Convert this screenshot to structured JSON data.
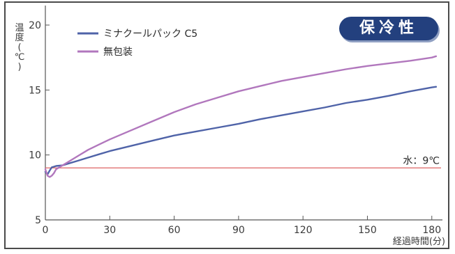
{
  "badge": {
    "label": "保冷性"
  },
  "chart_data": {
    "type": "line",
    "title": "",
    "ylabel": "温度(℃)",
    "xlabel": "経過時間(分)",
    "xlim": [
      0,
      183
    ],
    "ylim": [
      5,
      21.5
    ],
    "xticks": [
      0,
      30,
      60,
      90,
      120,
      150,
      180
    ],
    "yticks": [
      5,
      10,
      15,
      20
    ],
    "grid": false,
    "legend": "top-left",
    "series": [
      {
        "name": "ミナクールパック C5",
        "color": "#4f63a8",
        "x": [
          0,
          1,
          2,
          3,
          4,
          5,
          8,
          10,
          15,
          20,
          25,
          30,
          40,
          50,
          60,
          70,
          80,
          90,
          100,
          110,
          120,
          130,
          140,
          150,
          160,
          170,
          180,
          182
        ],
        "values": [
          8.7,
          8.5,
          8.8,
          9.05,
          9.1,
          9.15,
          9.2,
          9.3,
          9.55,
          9.8,
          10.05,
          10.3,
          10.7,
          11.1,
          11.5,
          11.8,
          12.1,
          12.4,
          12.75,
          13.05,
          13.35,
          13.65,
          14.0,
          14.25,
          14.55,
          14.9,
          15.2,
          15.25
        ]
      },
      {
        "name": "無包装",
        "color": "#b177bd",
        "x": [
          0,
          1,
          2,
          3,
          4,
          5,
          7,
          10,
          15,
          20,
          25,
          30,
          40,
          50,
          60,
          70,
          80,
          90,
          100,
          110,
          120,
          130,
          140,
          150,
          160,
          170,
          180,
          182
        ],
        "values": [
          8.9,
          8.4,
          8.3,
          8.4,
          8.6,
          8.9,
          9.1,
          9.4,
          9.9,
          10.4,
          10.8,
          11.2,
          11.9,
          12.6,
          13.3,
          13.9,
          14.4,
          14.9,
          15.3,
          15.7,
          16.0,
          16.3,
          16.6,
          16.85,
          17.05,
          17.25,
          17.5,
          17.6
        ]
      }
    ],
    "reference_line": {
      "y": 9,
      "label": "水：9℃",
      "color": "#e07070"
    }
  }
}
